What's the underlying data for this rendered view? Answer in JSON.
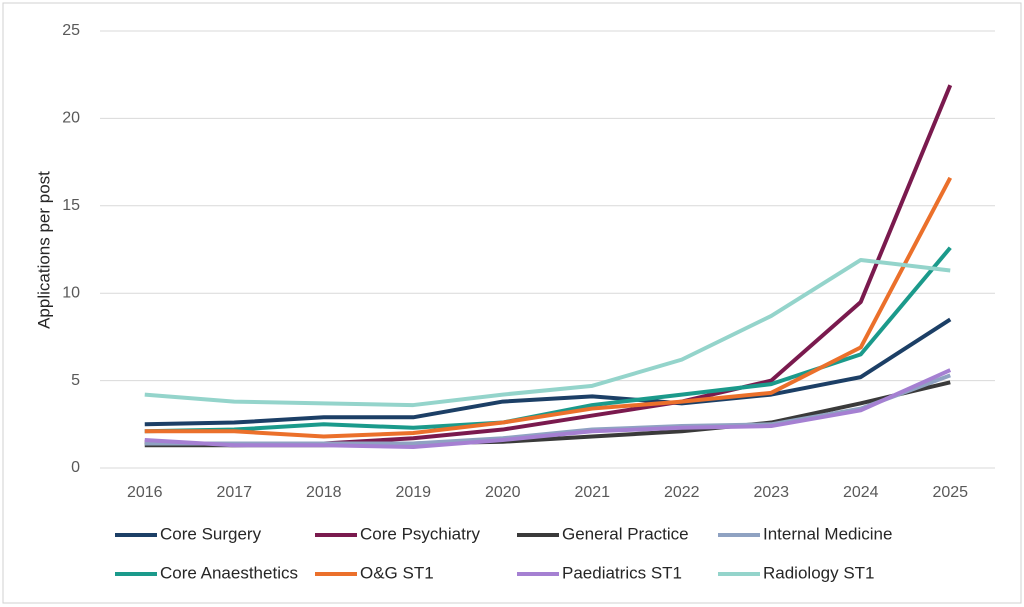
{
  "chart_data": {
    "type": "line",
    "y_label": "Applications per post",
    "categories": [
      "2016",
      "2017",
      "2018",
      "2019",
      "2020",
      "2021",
      "2022",
      "2023",
      "2024",
      "2025"
    ],
    "ylim": [
      0,
      25
    ],
    "yticks": [
      0,
      5,
      10,
      15,
      20,
      25
    ],
    "grid": true,
    "legend": "bottom",
    "series": [
      {
        "name": "Core Surgery",
        "color": "#1c3f66",
        "values": [
          2.5,
          2.6,
          2.9,
          2.9,
          3.8,
          4.1,
          3.7,
          4.2,
          5.2,
          8.5
        ]
      },
      {
        "name": "Core Psychiatry",
        "color": "#7a1a4e",
        "values": [
          1.5,
          1.3,
          1.4,
          1.7,
          2.2,
          3.0,
          3.8,
          5.0,
          9.5,
          21.9
        ]
      },
      {
        "name": "General Practice",
        "color": "#3a3a3a",
        "values": [
          1.3,
          1.3,
          1.3,
          1.4,
          1.5,
          1.8,
          2.1,
          2.6,
          3.7,
          4.9
        ]
      },
      {
        "name": "Internal Medicine",
        "color": "#8fa2c2",
        "values": [
          1.4,
          1.4,
          1.4,
          1.4,
          1.7,
          2.2,
          2.4,
          2.5,
          3.4,
          5.3
        ]
      },
      {
        "name": "Core Anaesthetics",
        "color": "#1b9a8b",
        "values": [
          2.1,
          2.2,
          2.5,
          2.3,
          2.6,
          3.6,
          4.2,
          4.8,
          6.5,
          12.6
        ]
      },
      {
        "name": "O&G ST1",
        "color": "#eb702b",
        "values": [
          2.1,
          2.1,
          1.8,
          2.0,
          2.6,
          3.4,
          3.8,
          4.3,
          6.9,
          16.6
        ]
      },
      {
        "name": "Paediatrics ST1",
        "color": "#a580d2",
        "values": [
          1.6,
          1.3,
          1.3,
          1.2,
          1.6,
          2.1,
          2.3,
          2.4,
          3.3,
          5.6
        ]
      },
      {
        "name": "Radiology ST1",
        "color": "#94d4cb",
        "values": [
          4.2,
          3.8,
          3.7,
          3.6,
          4.2,
          4.7,
          6.2,
          8.7,
          11.9,
          11.3
        ]
      }
    ]
  }
}
